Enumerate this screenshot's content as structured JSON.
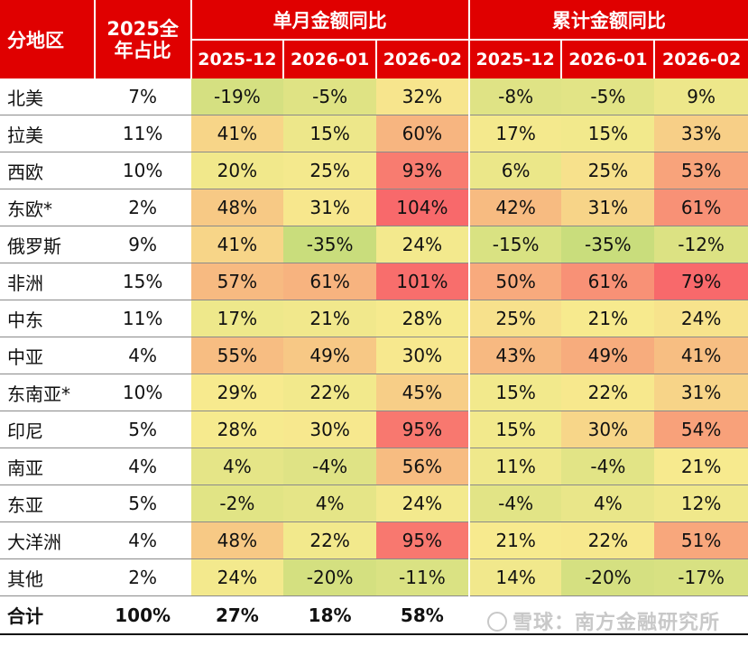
{
  "header": {
    "region": "分地区",
    "share": "2025全年占比",
    "monthly_group": "单月金额同比",
    "cumulative_group": "累计金额同比",
    "monthly_periods": [
      "2025-12",
      "2026-01",
      "2026-02"
    ],
    "cumulative_periods": [
      "2025-12",
      "2026-01",
      "2026-02"
    ]
  },
  "color_scale": {
    "low": "#c9dd7c",
    "mid": "#f7ea8e",
    "high": "#f8696b",
    "header_bg": "#e00000"
  },
  "rows": [
    {
      "region": "北美",
      "share": "7%",
      "monthly": [
        "-19%",
        "-5%",
        "32%"
      ],
      "cumulative": [
        "-8%",
        "-5%",
        "9%"
      ]
    },
    {
      "region": "拉美",
      "share": "11%",
      "monthly": [
        "41%",
        "15%",
        "60%"
      ],
      "cumulative": [
        "17%",
        "15%",
        "33%"
      ]
    },
    {
      "region": "西欧",
      "share": "10%",
      "monthly": [
        "20%",
        "25%",
        "93%"
      ],
      "cumulative": [
        "6%",
        "25%",
        "53%"
      ]
    },
    {
      "region": "东欧*",
      "share": "2%",
      "monthly": [
        "48%",
        "31%",
        "104%"
      ],
      "cumulative": [
        "42%",
        "31%",
        "61%"
      ]
    },
    {
      "region": "俄罗斯",
      "share": "9%",
      "monthly": [
        "41%",
        "-35%",
        "24%"
      ],
      "cumulative": [
        "-15%",
        "-35%",
        "-12%"
      ]
    },
    {
      "region": "非洲",
      "share": "15%",
      "monthly": [
        "57%",
        "61%",
        "101%"
      ],
      "cumulative": [
        "50%",
        "61%",
        "79%"
      ]
    },
    {
      "region": "中东",
      "share": "11%",
      "monthly": [
        "17%",
        "21%",
        "28%"
      ],
      "cumulative": [
        "25%",
        "21%",
        "24%"
      ]
    },
    {
      "region": "中亚",
      "share": "4%",
      "monthly": [
        "55%",
        "49%",
        "30%"
      ],
      "cumulative": [
        "43%",
        "49%",
        "41%"
      ]
    },
    {
      "region": "东南亚*",
      "share": "10%",
      "monthly": [
        "29%",
        "22%",
        "45%"
      ],
      "cumulative": [
        "15%",
        "22%",
        "31%"
      ]
    },
    {
      "region": "印尼",
      "share": "5%",
      "monthly": [
        "28%",
        "30%",
        "95%"
      ],
      "cumulative": [
        "15%",
        "30%",
        "54%"
      ]
    },
    {
      "region": "南亚",
      "share": "4%",
      "monthly": [
        "4%",
        "-4%",
        "56%"
      ],
      "cumulative": [
        "11%",
        "-4%",
        "21%"
      ]
    },
    {
      "region": "东亚",
      "share": "5%",
      "monthly": [
        "-2%",
        "4%",
        "24%"
      ],
      "cumulative": [
        "-4%",
        "4%",
        "12%"
      ]
    },
    {
      "region": "大洋洲",
      "share": "4%",
      "monthly": [
        "48%",
        "22%",
        "95%"
      ],
      "cumulative": [
        "21%",
        "22%",
        "51%"
      ]
    },
    {
      "region": "其他",
      "share": "2%",
      "monthly": [
        "24%",
        "-20%",
        "-11%"
      ],
      "cumulative": [
        "14%",
        "-20%",
        "-17%"
      ]
    }
  ],
  "total": {
    "region": "合计",
    "share": "100%",
    "monthly": [
      "27%",
      "18%",
      "58%"
    ]
  },
  "watermark": "雪球：南方金融研究所"
}
